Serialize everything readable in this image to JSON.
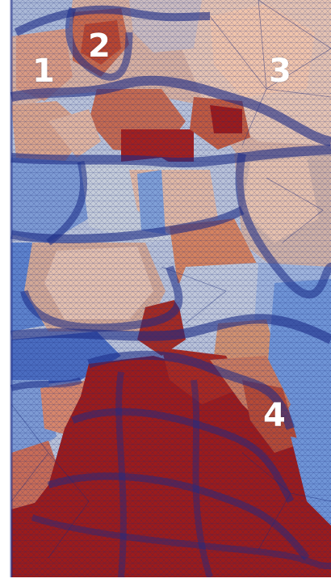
{
  "figure": {
    "grain_labels": [
      {
        "id": "1",
        "text": "1"
      },
      {
        "id": "2",
        "text": "2"
      },
      {
        "id": "3",
        "text": "3"
      },
      {
        "id": "4",
        "text": "4"
      }
    ],
    "colors": {
      "deep_red": "#9b1b1b",
      "light_red": "#cf7f62",
      "peach": "#e8b39a",
      "neutral": "#c9ccd6",
      "light_blue": "#8fa8d6",
      "mid_blue": "#6a8fcf",
      "mesh_line": "#1a2a7a",
      "label_color": "#ffffff"
    }
  }
}
